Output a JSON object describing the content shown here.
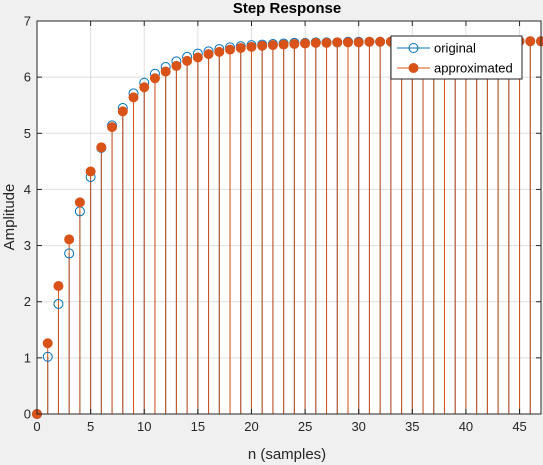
{
  "chart_data": {
    "type": "stem",
    "title": "Step Response",
    "xlabel": "n (samples)",
    "ylabel": "Amplitude",
    "xlim": [
      0,
      47
    ],
    "ylim": [
      0,
      7
    ],
    "xticks": [
      0,
      5,
      10,
      15,
      20,
      25,
      30,
      35,
      40,
      45
    ],
    "yticks": [
      0,
      1,
      2,
      3,
      4,
      5,
      6,
      7
    ],
    "grid": true,
    "legend_position": "top-right",
    "x": [
      0,
      1,
      2,
      3,
      4,
      5,
      6,
      7,
      8,
      9,
      10,
      11,
      12,
      13,
      14,
      15,
      16,
      17,
      18,
      19,
      20,
      21,
      22,
      23,
      24,
      25,
      26,
      27,
      28,
      29,
      30,
      31,
      32,
      33,
      34,
      35,
      36,
      37,
      38,
      39,
      40,
      41,
      42,
      43,
      44,
      45,
      46,
      47
    ],
    "series": [
      {
        "name": "original",
        "color": "#0072bd",
        "marker": "open-circle",
        "values": [
          0,
          1.02,
          1.96,
          2.86,
          3.61,
          4.22,
          4.74,
          5.14,
          5.45,
          5.71,
          5.9,
          6.06,
          6.18,
          6.28,
          6.36,
          6.42,
          6.46,
          6.5,
          6.53,
          6.55,
          6.57,
          6.58,
          6.59,
          6.6,
          6.61,
          6.61,
          6.62,
          6.62,
          6.62,
          6.63,
          6.63,
          6.63,
          6.63,
          6.63,
          6.63,
          6.64,
          6.64,
          6.64,
          6.64,
          6.64,
          6.64,
          6.64,
          6.64,
          6.64,
          6.64,
          6.64,
          6.64,
          6.64
        ]
      },
      {
        "name": "approximated",
        "color": "#d95319",
        "marker": "filled-circle",
        "values": [
          0,
          1.26,
          2.28,
          3.11,
          3.77,
          4.32,
          4.75,
          5.11,
          5.39,
          5.64,
          5.82,
          5.98,
          6.1,
          6.2,
          6.29,
          6.35,
          6.41,
          6.45,
          6.49,
          6.52,
          6.54,
          6.56,
          6.57,
          6.58,
          6.59,
          6.6,
          6.61,
          6.61,
          6.62,
          6.62,
          6.62,
          6.63,
          6.63,
          6.63,
          6.63,
          6.63,
          6.64,
          6.64,
          6.64,
          6.64,
          6.64,
          6.64,
          6.64,
          6.64,
          6.64,
          6.64,
          6.64,
          6.64
        ]
      }
    ]
  }
}
